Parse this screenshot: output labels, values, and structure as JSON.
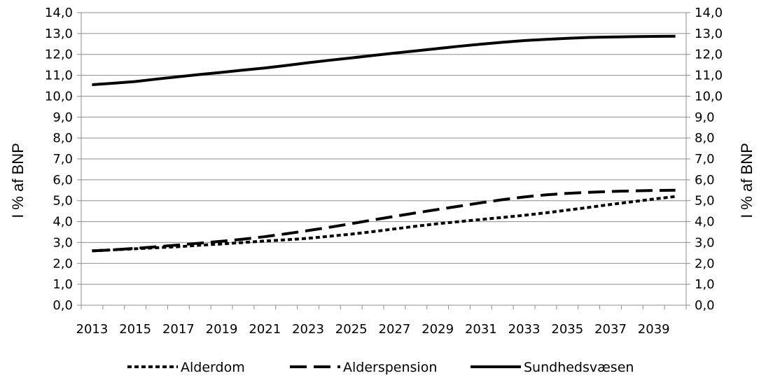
{
  "chart_data": {
    "type": "line",
    "x": [
      2013,
      2014,
      2015,
      2016,
      2017,
      2018,
      2019,
      2020,
      2021,
      2022,
      2023,
      2024,
      2025,
      2026,
      2027,
      2028,
      2029,
      2030,
      2031,
      2032,
      2033,
      2034,
      2035,
      2036,
      2037,
      2038,
      2039,
      2040
    ],
    "x_tick_labels": [
      "2013",
      "2015",
      "2017",
      "2019",
      "2021",
      "2023",
      "2025",
      "2027",
      "2029",
      "2031",
      "2033",
      "2035",
      "2037",
      "2039"
    ],
    "y_tick_labels": [
      "0,0",
      "1,0",
      "2,0",
      "3,0",
      "4,0",
      "5,0",
      "6,0",
      "7,0",
      "8,0",
      "9,0",
      "10,0",
      "11,0",
      "12,0",
      "13,0",
      "14,0"
    ],
    "ylabel_left": "I % af BNP",
    "ylabel_right": "I % af BNP",
    "ylim": [
      0,
      14
    ],
    "grid": true,
    "legend_position": "bottom",
    "series": [
      {
        "name": "Alderdom",
        "style": "dotted",
        "color": "#000000",
        "values": [
          2.6,
          2.65,
          2.7,
          2.75,
          2.8,
          2.87,
          2.93,
          3.0,
          3.07,
          3.13,
          3.2,
          3.3,
          3.4,
          3.52,
          3.65,
          3.78,
          3.9,
          4.0,
          4.1,
          4.2,
          4.3,
          4.42,
          4.55,
          4.68,
          4.82,
          4.95,
          5.08,
          5.2
        ]
      },
      {
        "name": "Alderspension",
        "style": "dashed",
        "color": "#000000",
        "values": [
          2.6,
          2.65,
          2.72,
          2.8,
          2.88,
          2.97,
          3.06,
          3.16,
          3.28,
          3.42,
          3.57,
          3.73,
          3.9,
          4.08,
          4.25,
          4.42,
          4.58,
          4.74,
          4.9,
          5.05,
          5.18,
          5.28,
          5.35,
          5.4,
          5.44,
          5.47,
          5.49,
          5.5
        ]
      },
      {
        "name": "Sundhedsvæsen",
        "style": "solid",
        "color": "#000000",
        "values": [
          10.55,
          10.62,
          10.7,
          10.82,
          10.93,
          11.04,
          11.14,
          11.25,
          11.35,
          11.47,
          11.6,
          11.72,
          11.83,
          11.95,
          12.06,
          12.17,
          12.28,
          12.39,
          12.49,
          12.58,
          12.66,
          12.72,
          12.77,
          12.81,
          12.83,
          12.85,
          12.86,
          12.87
        ]
      }
    ]
  }
}
